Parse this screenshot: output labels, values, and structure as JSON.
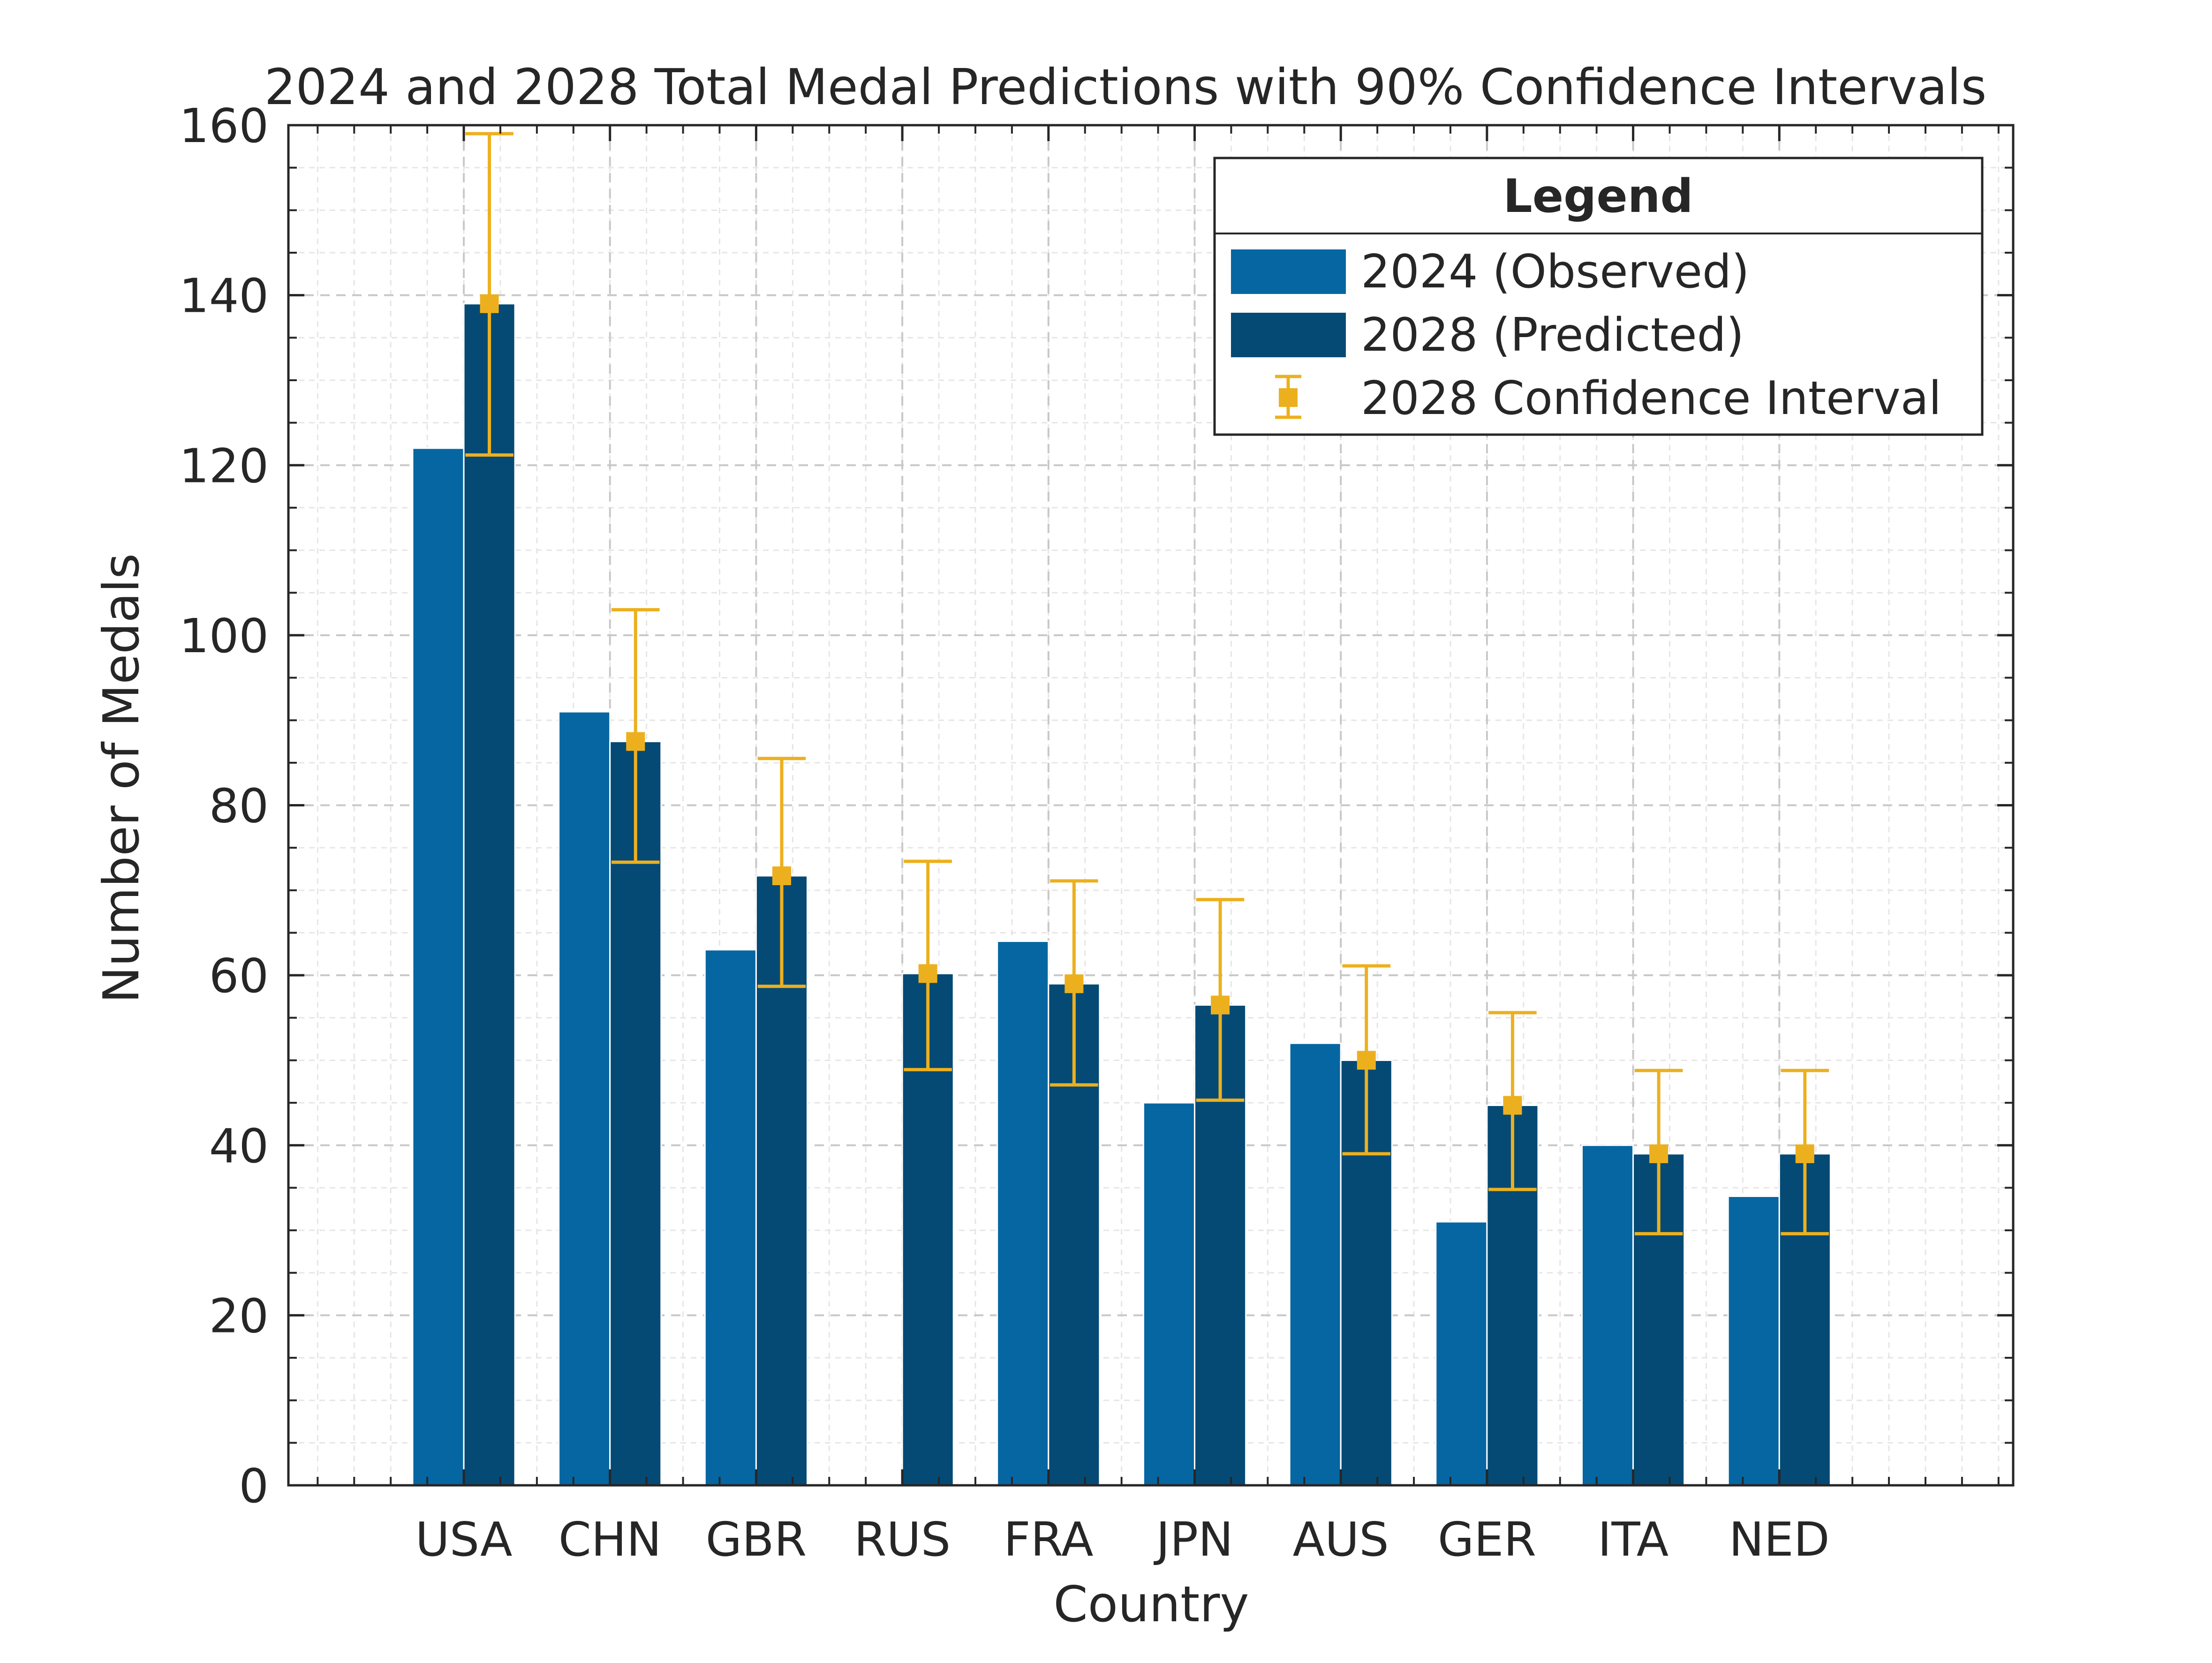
{
  "chart_data": {
    "type": "bar",
    "title": "2024 and 2028 Total Medal Predictions with 90% Confidence Intervals",
    "xlabel": "Country",
    "ylabel": "Number of Medals",
    "ylim": [
      0,
      160
    ],
    "yticks": [
      0,
      20,
      40,
      60,
      80,
      100,
      120,
      140,
      160
    ],
    "grid": true,
    "legend_placement": "top-right",
    "legend_title": "Legend",
    "categories": [
      "USA",
      "CHN",
      "GBR",
      "RUS",
      "FRA",
      "JPN",
      "AUS",
      "GER",
      "ITA",
      "NED"
    ],
    "series": [
      {
        "name": "2024 (Observed)",
        "color": "#0666a2",
        "values": [
          122,
          91,
          63,
          0,
          64,
          45,
          52,
          31,
          40,
          34
        ]
      },
      {
        "name": "2028 (Predicted)",
        "color": "#054a74",
        "values": [
          139,
          87.5,
          71.7,
          60.2,
          59,
          56.5,
          50,
          44.7,
          39,
          39
        ]
      }
    ],
    "confidence_interval": {
      "name": "2028 Confidence Interval",
      "color": "#ecb01f",
      "lower": [
        121.2,
        73.3,
        58.7,
        48.9,
        47.1,
        45.3,
        39,
        34.8,
        29.6,
        29.6
      ],
      "upper": [
        159,
        103,
        85.5,
        73.4,
        71.1,
        68.9,
        61.1,
        55.6,
        48.8,
        48.8
      ]
    }
  }
}
